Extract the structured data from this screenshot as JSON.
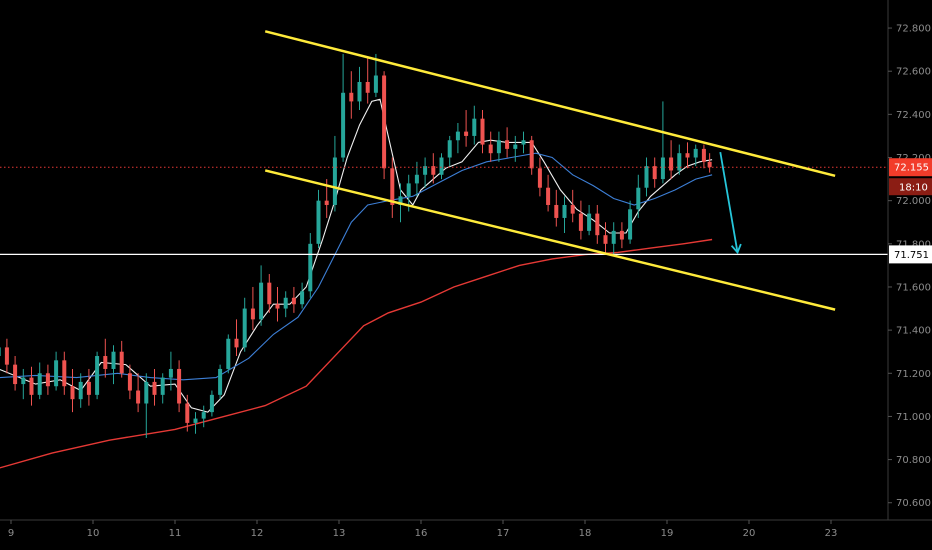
{
  "chart_data": {
    "type": "candlestick",
    "title": "",
    "ylim": [
      70.52,
      72.93
    ],
    "y_ticks": [
      "70.600",
      "70.800",
      "71.000",
      "71.200",
      "71.400",
      "71.600",
      "71.800",
      "72.000",
      "72.200",
      "72.400",
      "72.600",
      "72.800"
    ],
    "x_ticks": [
      {
        "label": "9",
        "x": 0
      },
      {
        "label": "10",
        "x": 1
      },
      {
        "label": "11",
        "x": 2
      },
      {
        "label": "12",
        "x": 3
      },
      {
        "label": "13",
        "x": 4
      },
      {
        "label": "16",
        "x": 5
      },
      {
        "label": "17",
        "x": 6
      },
      {
        "label": "18",
        "x": 7
      },
      {
        "label": "19",
        "x": 8
      },
      {
        "label": "20",
        "x": 9
      },
      {
        "label": "23",
        "x": 10
      }
    ],
    "price_tag": {
      "value": "72.155",
      "price": 72.155,
      "color": "#f23c2a"
    },
    "countdown_tag": {
      "value": "18:10"
    },
    "level_tag": {
      "value": "71.751",
      "price": 71.751
    },
    "trendlines": [
      {
        "name": "channel-upper",
        "color": "#ffeb3b",
        "from": [
          3.1,
          72.785
        ],
        "to": [
          10.05,
          72.115
        ]
      },
      {
        "name": "channel-lower",
        "color": "#ffeb3b",
        "from": [
          3.1,
          72.14
        ],
        "to": [
          10.05,
          71.495
        ]
      }
    ],
    "horizontal_lines": [
      {
        "name": "current-price-line",
        "price": 72.155,
        "color": "#e53935",
        "style": "dotted"
      },
      {
        "name": "support-level-line",
        "price": 71.751,
        "color": "#ffffff",
        "style": "solid"
      }
    ],
    "projection_arrow": {
      "from": [
        8.65,
        72.225
      ],
      "to": [
        8.86,
        71.76
      ],
      "color": "#26c6da"
    },
    "ma_series": [
      {
        "name": "ma-fast",
        "color": "#f0f0f0",
        "points": [
          [
            -0.15,
            71.22
          ],
          [
            0.3,
            71.15
          ],
          [
            0.6,
            71.17
          ],
          [
            0.85,
            71.12
          ],
          [
            1.1,
            71.25
          ],
          [
            1.4,
            71.24
          ],
          [
            1.7,
            71.14
          ],
          [
            2.0,
            71.15
          ],
          [
            2.2,
            71.04
          ],
          [
            2.4,
            71.02
          ],
          [
            2.6,
            71.1
          ],
          [
            2.8,
            71.3
          ],
          [
            3.0,
            71.42
          ],
          [
            3.2,
            71.52
          ],
          [
            3.4,
            71.52
          ],
          [
            3.6,
            71.6
          ],
          [
            3.8,
            71.82
          ],
          [
            3.95,
            72.0
          ],
          [
            4.1,
            72.2
          ],
          [
            4.25,
            72.35
          ],
          [
            4.4,
            72.46
          ],
          [
            4.5,
            72.47
          ],
          [
            4.6,
            72.3
          ],
          [
            4.75,
            72.05
          ],
          [
            4.9,
            71.98
          ],
          [
            5.0,
            72.05
          ],
          [
            5.15,
            72.1
          ],
          [
            5.3,
            72.15
          ],
          [
            5.5,
            72.18
          ],
          [
            5.7,
            72.27
          ],
          [
            5.85,
            72.28
          ],
          [
            6.05,
            72.27
          ],
          [
            6.2,
            72.27
          ],
          [
            6.35,
            72.27
          ],
          [
            6.5,
            72.18
          ],
          [
            6.7,
            72.05
          ],
          [
            6.9,
            71.96
          ],
          [
            7.1,
            71.91
          ],
          [
            7.3,
            71.85
          ],
          [
            7.5,
            71.85
          ],
          [
            7.65,
            71.95
          ],
          [
            7.8,
            72.02
          ],
          [
            7.95,
            72.07
          ],
          [
            8.1,
            72.12
          ],
          [
            8.25,
            72.16
          ],
          [
            8.4,
            72.18
          ],
          [
            8.55,
            72.19
          ]
        ]
      },
      {
        "name": "ma-mid",
        "color": "#3d7fd6",
        "points": [
          [
            -0.15,
            71.18
          ],
          [
            0.3,
            71.19
          ],
          [
            0.8,
            71.18
          ],
          [
            1.3,
            71.2
          ],
          [
            1.7,
            71.18
          ],
          [
            2.1,
            71.17
          ],
          [
            2.5,
            71.18
          ],
          [
            2.9,
            71.27
          ],
          [
            3.2,
            71.38
          ],
          [
            3.5,
            71.46
          ],
          [
            3.75,
            71.6
          ],
          [
            3.95,
            71.75
          ],
          [
            4.15,
            71.9
          ],
          [
            4.35,
            71.98
          ],
          [
            4.6,
            72.0
          ],
          [
            4.9,
            72.02
          ],
          [
            5.2,
            72.08
          ],
          [
            5.5,
            72.14
          ],
          [
            5.8,
            72.18
          ],
          [
            6.1,
            72.2
          ],
          [
            6.4,
            72.22
          ],
          [
            6.6,
            72.2
          ],
          [
            6.85,
            72.12
          ],
          [
            7.1,
            72.07
          ],
          [
            7.35,
            72.01
          ],
          [
            7.6,
            71.98
          ],
          [
            7.85,
            72.01
          ],
          [
            8.1,
            72.05
          ],
          [
            8.35,
            72.1
          ],
          [
            8.55,
            72.12
          ]
        ]
      },
      {
        "name": "ma-slow",
        "color": "#e53935",
        "points": [
          [
            -0.15,
            70.76
          ],
          [
            0.5,
            70.83
          ],
          [
            1.2,
            70.89
          ],
          [
            2.0,
            70.94
          ],
          [
            2.6,
            71.0
          ],
          [
            3.1,
            71.05
          ],
          [
            3.6,
            71.14
          ],
          [
            4.0,
            71.3
          ],
          [
            4.3,
            71.42
          ],
          [
            4.6,
            71.48
          ],
          [
            5.0,
            71.53
          ],
          [
            5.4,
            71.6
          ],
          [
            5.8,
            71.65
          ],
          [
            6.2,
            71.7
          ],
          [
            6.6,
            71.73
          ],
          [
            7.0,
            71.75
          ],
          [
            7.4,
            71.76
          ],
          [
            7.8,
            71.78
          ],
          [
            8.2,
            71.8
          ],
          [
            8.55,
            71.82
          ]
        ]
      }
    ],
    "candle_color_up": "#26a69a",
    "candle_color_down": "#ef5350",
    "candles": [
      {
        "x": -0.15,
        "o": 71.28,
        "h": 71.35,
        "l": 71.22,
        "c": 71.32
      },
      {
        "x": -0.05,
        "o": 71.32,
        "h": 71.36,
        "l": 71.2,
        "c": 71.24
      },
      {
        "x": 0.05,
        "o": 71.24,
        "h": 71.28,
        "l": 71.12,
        "c": 71.15
      },
      {
        "x": 0.15,
        "o": 71.15,
        "h": 71.22,
        "l": 71.08,
        "c": 71.18
      },
      {
        "x": 0.25,
        "o": 71.18,
        "h": 71.23,
        "l": 71.05,
        "c": 71.1
      },
      {
        "x": 0.35,
        "o": 71.1,
        "h": 71.25,
        "l": 71.08,
        "c": 71.2
      },
      {
        "x": 0.45,
        "o": 71.2,
        "h": 71.24,
        "l": 71.1,
        "c": 71.14
      },
      {
        "x": 0.55,
        "o": 71.14,
        "h": 71.3,
        "l": 71.12,
        "c": 71.26
      },
      {
        "x": 0.65,
        "o": 71.26,
        "h": 71.3,
        "l": 71.1,
        "c": 71.14
      },
      {
        "x": 0.75,
        "o": 71.14,
        "h": 71.22,
        "l": 71.02,
        "c": 71.08
      },
      {
        "x": 0.85,
        "o": 71.08,
        "h": 71.2,
        "l": 71.04,
        "c": 71.16
      },
      {
        "x": 0.95,
        "o": 71.16,
        "h": 71.22,
        "l": 71.05,
        "c": 71.1
      },
      {
        "x": 1.05,
        "o": 71.1,
        "h": 71.3,
        "l": 71.08,
        "c": 71.28
      },
      {
        "x": 1.15,
        "o": 71.28,
        "h": 71.36,
        "l": 71.18,
        "c": 71.22
      },
      {
        "x": 1.25,
        "o": 71.22,
        "h": 71.33,
        "l": 71.15,
        "c": 71.3
      },
      {
        "x": 1.35,
        "o": 71.3,
        "h": 71.35,
        "l": 71.18,
        "c": 71.2
      },
      {
        "x": 1.45,
        "o": 71.2,
        "h": 71.24,
        "l": 71.08,
        "c": 71.12
      },
      {
        "x": 1.55,
        "o": 71.12,
        "h": 71.2,
        "l": 71.02,
        "c": 71.06
      },
      {
        "x": 1.65,
        "o": 71.06,
        "h": 71.2,
        "l": 70.9,
        "c": 71.16
      },
      {
        "x": 1.75,
        "o": 71.16,
        "h": 71.22,
        "l": 71.05,
        "c": 71.1
      },
      {
        "x": 1.85,
        "o": 71.1,
        "h": 71.2,
        "l": 71.06,
        "c": 71.18
      },
      {
        "x": 1.95,
        "o": 71.18,
        "h": 71.3,
        "l": 71.12,
        "c": 71.22
      },
      {
        "x": 2.05,
        "o": 71.22,
        "h": 71.26,
        "l": 71.02,
        "c": 71.06
      },
      {
        "x": 2.15,
        "o": 71.06,
        "h": 71.1,
        "l": 70.93,
        "c": 70.97
      },
      {
        "x": 2.25,
        "o": 70.97,
        "h": 71.02,
        "l": 70.92,
        "c": 70.99
      },
      {
        "x": 2.35,
        "o": 70.99,
        "h": 71.05,
        "l": 70.95,
        "c": 71.02
      },
      {
        "x": 2.45,
        "o": 71.02,
        "h": 71.12,
        "l": 71.0,
        "c": 71.1
      },
      {
        "x": 2.55,
        "o": 71.1,
        "h": 71.24,
        "l": 71.08,
        "c": 71.22
      },
      {
        "x": 2.65,
        "o": 71.22,
        "h": 71.38,
        "l": 71.2,
        "c": 71.36
      },
      {
        "x": 2.75,
        "o": 71.36,
        "h": 71.45,
        "l": 71.28,
        "c": 71.32
      },
      {
        "x": 2.85,
        "o": 71.32,
        "h": 71.55,
        "l": 71.3,
        "c": 71.5
      },
      {
        "x": 2.95,
        "o": 71.5,
        "h": 71.6,
        "l": 71.4,
        "c": 71.45
      },
      {
        "x": 3.05,
        "o": 71.45,
        "h": 71.7,
        "l": 71.42,
        "c": 71.62
      },
      {
        "x": 3.15,
        "o": 71.62,
        "h": 71.66,
        "l": 71.48,
        "c": 71.52
      },
      {
        "x": 3.25,
        "o": 71.52,
        "h": 71.6,
        "l": 71.44,
        "c": 71.5
      },
      {
        "x": 3.35,
        "o": 71.5,
        "h": 71.58,
        "l": 71.46,
        "c": 71.55
      },
      {
        "x": 3.45,
        "o": 71.55,
        "h": 71.6,
        "l": 71.48,
        "c": 71.52
      },
      {
        "x": 3.55,
        "o": 71.52,
        "h": 71.62,
        "l": 71.5,
        "c": 71.58
      },
      {
        "x": 3.65,
        "o": 71.58,
        "h": 71.85,
        "l": 71.55,
        "c": 71.8
      },
      {
        "x": 3.75,
        "o": 71.8,
        "h": 72.05,
        "l": 71.78,
        "c": 72.0
      },
      {
        "x": 3.85,
        "o": 72.0,
        "h": 72.1,
        "l": 71.92,
        "c": 71.98
      },
      {
        "x": 3.95,
        "o": 71.98,
        "h": 72.3,
        "l": 71.95,
        "c": 72.2
      },
      {
        "x": 4.05,
        "o": 72.2,
        "h": 72.68,
        "l": 72.18,
        "c": 72.5
      },
      {
        "x": 4.15,
        "o": 72.5,
        "h": 72.6,
        "l": 72.38,
        "c": 72.46
      },
      {
        "x": 4.25,
        "o": 72.46,
        "h": 72.62,
        "l": 72.42,
        "c": 72.55
      },
      {
        "x": 4.35,
        "o": 72.55,
        "h": 72.66,
        "l": 72.45,
        "c": 72.5
      },
      {
        "x": 4.45,
        "o": 72.5,
        "h": 72.68,
        "l": 72.48,
        "c": 72.58
      },
      {
        "x": 4.55,
        "o": 72.58,
        "h": 72.6,
        "l": 72.1,
        "c": 72.15
      },
      {
        "x": 4.65,
        "o": 72.15,
        "h": 72.2,
        "l": 71.92,
        "c": 71.98
      },
      {
        "x": 4.75,
        "o": 71.98,
        "h": 72.08,
        "l": 71.9,
        "c": 72.02
      },
      {
        "x": 4.85,
        "o": 72.02,
        "h": 72.12,
        "l": 71.95,
        "c": 72.08
      },
      {
        "x": 4.95,
        "o": 72.08,
        "h": 72.18,
        "l": 72.02,
        "c": 72.12
      },
      {
        "x": 5.05,
        "o": 72.12,
        "h": 72.2,
        "l": 72.06,
        "c": 72.16
      },
      {
        "x": 5.15,
        "o": 72.16,
        "h": 72.22,
        "l": 72.08,
        "c": 72.12
      },
      {
        "x": 5.25,
        "o": 72.12,
        "h": 72.22,
        "l": 72.1,
        "c": 72.2
      },
      {
        "x": 5.35,
        "o": 72.2,
        "h": 72.3,
        "l": 72.16,
        "c": 72.28
      },
      {
        "x": 5.45,
        "o": 72.28,
        "h": 72.36,
        "l": 72.22,
        "c": 72.32
      },
      {
        "x": 5.55,
        "o": 72.32,
        "h": 72.42,
        "l": 72.25,
        "c": 72.3
      },
      {
        "x": 5.65,
        "o": 72.3,
        "h": 72.44,
        "l": 72.26,
        "c": 72.38
      },
      {
        "x": 5.75,
        "o": 72.38,
        "h": 72.42,
        "l": 72.22,
        "c": 72.26
      },
      {
        "x": 5.85,
        "o": 72.26,
        "h": 72.32,
        "l": 72.18,
        "c": 72.22
      },
      {
        "x": 5.95,
        "o": 72.22,
        "h": 72.32,
        "l": 72.18,
        "c": 72.28
      },
      {
        "x": 6.05,
        "o": 72.28,
        "h": 72.34,
        "l": 72.2,
        "c": 72.24
      },
      {
        "x": 6.15,
        "o": 72.24,
        "h": 72.3,
        "l": 72.18,
        "c": 72.26
      },
      {
        "x": 6.25,
        "o": 72.26,
        "h": 72.32,
        "l": 72.22,
        "c": 72.28
      },
      {
        "x": 6.35,
        "o": 72.28,
        "h": 72.3,
        "l": 72.12,
        "c": 72.15
      },
      {
        "x": 6.45,
        "o": 72.15,
        "h": 72.2,
        "l": 72.02,
        "c": 72.06
      },
      {
        "x": 6.55,
        "o": 72.06,
        "h": 72.12,
        "l": 71.95,
        "c": 71.98
      },
      {
        "x": 6.65,
        "o": 71.98,
        "h": 72.05,
        "l": 71.88,
        "c": 71.92
      },
      {
        "x": 6.75,
        "o": 71.92,
        "h": 72.02,
        "l": 71.85,
        "c": 71.98
      },
      {
        "x": 6.85,
        "o": 71.98,
        "h": 72.05,
        "l": 71.9,
        "c": 71.94
      },
      {
        "x": 6.95,
        "o": 71.94,
        "h": 72.0,
        "l": 71.82,
        "c": 71.86
      },
      {
        "x": 7.05,
        "o": 71.86,
        "h": 71.98,
        "l": 71.84,
        "c": 71.94
      },
      {
        "x": 7.15,
        "o": 71.94,
        "h": 71.98,
        "l": 71.8,
        "c": 71.84
      },
      {
        "x": 7.25,
        "o": 71.84,
        "h": 71.9,
        "l": 71.76,
        "c": 71.8
      },
      {
        "x": 7.35,
        "o": 71.8,
        "h": 71.9,
        "l": 71.75,
        "c": 71.86
      },
      {
        "x": 7.45,
        "o": 71.86,
        "h": 71.9,
        "l": 71.78,
        "c": 71.82
      },
      {
        "x": 7.55,
        "o": 71.82,
        "h": 72.0,
        "l": 71.8,
        "c": 71.96
      },
      {
        "x": 7.65,
        "o": 71.96,
        "h": 72.12,
        "l": 71.92,
        "c": 72.06
      },
      {
        "x": 7.75,
        "o": 72.06,
        "h": 72.2,
        "l": 72.02,
        "c": 72.16
      },
      {
        "x": 7.85,
        "o": 72.16,
        "h": 72.2,
        "l": 72.06,
        "c": 72.1
      },
      {
        "x": 7.95,
        "o": 72.1,
        "h": 72.46,
        "l": 72.08,
        "c": 72.2
      },
      {
        "x": 8.05,
        "o": 72.2,
        "h": 72.28,
        "l": 72.1,
        "c": 72.14
      },
      {
        "x": 8.15,
        "o": 72.14,
        "h": 72.26,
        "l": 72.12,
        "c": 72.22
      },
      {
        "x": 8.25,
        "o": 72.22,
        "h": 72.27,
        "l": 72.15,
        "c": 72.2
      },
      {
        "x": 8.35,
        "o": 72.2,
        "h": 72.26,
        "l": 72.16,
        "c": 72.24
      },
      {
        "x": 8.45,
        "o": 72.24,
        "h": 72.26,
        "l": 72.15,
        "c": 72.18
      },
      {
        "x": 8.52,
        "o": 72.18,
        "h": 72.22,
        "l": 72.13,
        "c": 72.155
      }
    ]
  }
}
